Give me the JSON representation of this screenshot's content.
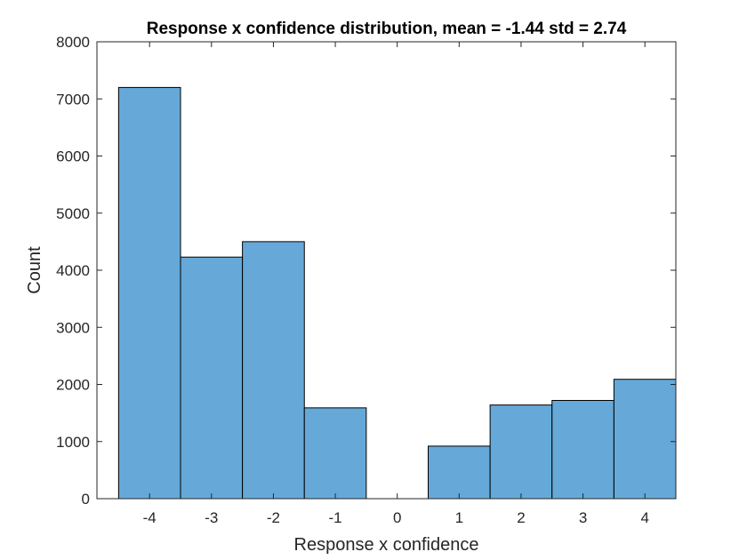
{
  "chart_data": {
    "type": "bar",
    "title": "Response x confidence distribution, mean = -1.44 std = 2.74",
    "xlabel": "Response x confidence",
    "ylabel": "Count",
    "categories": [
      "-4",
      "-3",
      "-2",
      "-1",
      "0",
      "1",
      "2",
      "3",
      "4"
    ],
    "x": [
      -4,
      -3,
      -2,
      -1,
      0,
      1,
      2,
      3,
      4
    ],
    "values": [
      7200,
      4230,
      4500,
      1590,
      0,
      920,
      1640,
      1720,
      2090
    ],
    "xlim": [
      -4.85,
      4.5
    ],
    "ylim": [
      0,
      8000
    ],
    "yticks": [
      0,
      1000,
      2000,
      3000,
      4000,
      5000,
      6000,
      7000,
      8000
    ],
    "xticks": [
      -4,
      -3,
      -2,
      -1,
      0,
      1,
      2,
      3,
      4
    ],
    "grid": false,
    "legend": "none",
    "bar_color": "#66a9d8",
    "edge_color": "#000000",
    "axis_color": "#262626"
  }
}
